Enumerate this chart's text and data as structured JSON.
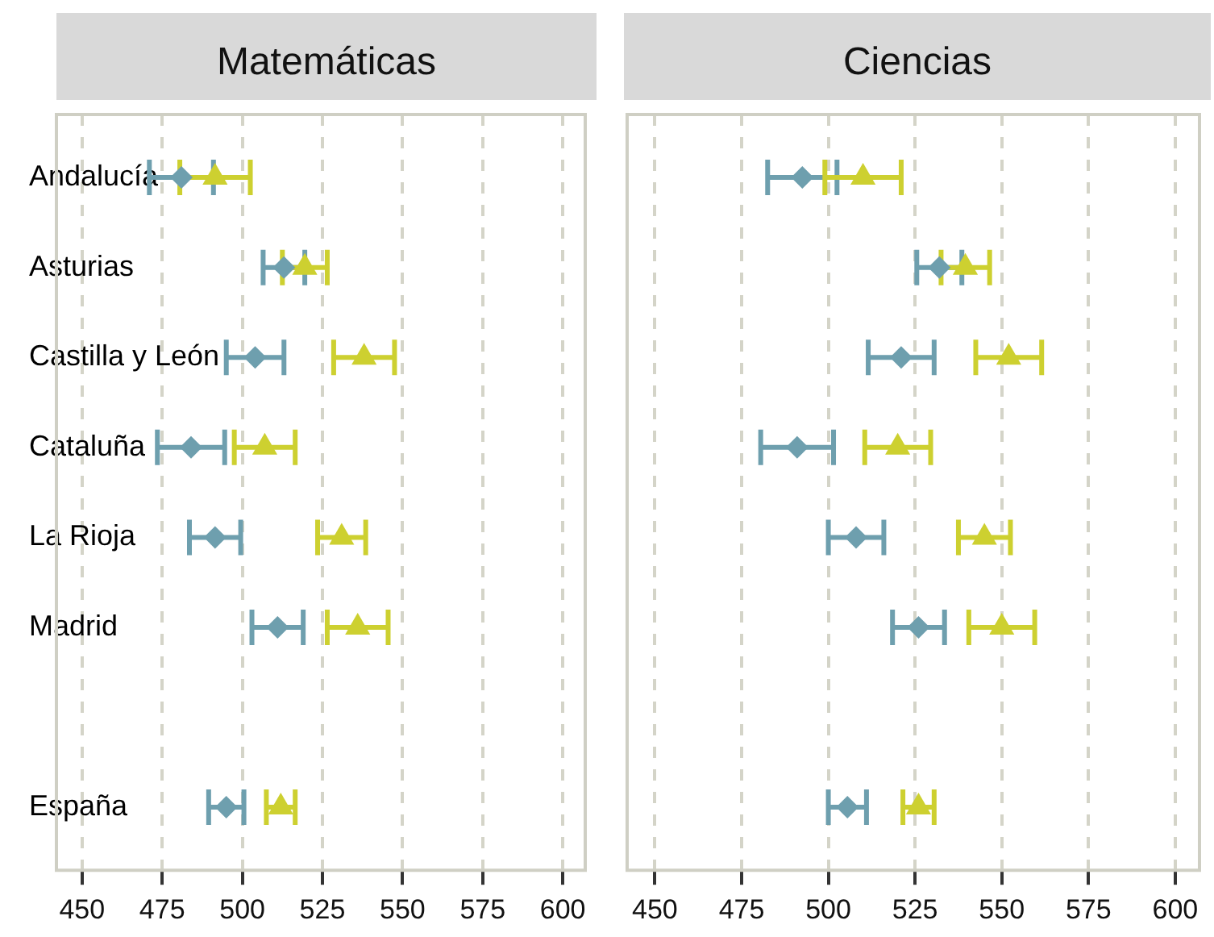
{
  "chart_data": [
    {
      "type": "scatter",
      "orientation": "horizontal",
      "title": "Matemáticas",
      "categories": [
        "Andalucía",
        "Asturias",
        "Castilla y León",
        "Cataluña",
        "La Rioja",
        "Madrid",
        null,
        "España"
      ],
      "xlim": [
        442,
        607
      ],
      "xticks": [
        450,
        475,
        500,
        525,
        550,
        575,
        600
      ],
      "grid": "x",
      "series": [
        {
          "color": "#6e9fae",
          "marker": "diamond",
          "values": [
            481,
            513,
            504,
            484,
            491.5,
            511,
            null,
            495
          ],
          "errors": [
            10,
            6.5,
            9,
            10.5,
            8,
            8,
            null,
            5.5
          ]
        },
        {
          "color": "#cdd030",
          "marker": "triangle",
          "values": [
            491.5,
            519.5,
            538,
            507,
            531,
            536,
            null,
            512
          ],
          "errors": [
            11,
            7,
            9.5,
            9.5,
            7.5,
            9.5,
            null,
            4.5
          ]
        }
      ]
    },
    {
      "type": "scatter",
      "orientation": "horizontal",
      "title": "Ciencias",
      "categories": [
        null,
        null,
        null,
        null,
        null,
        null,
        null,
        null
      ],
      "xlim": [
        442,
        607
      ],
      "xticks": [
        450,
        475,
        500,
        525,
        550,
        575,
        600
      ],
      "grid": "x",
      "tick_labels": "x",
      "series": [
        {
          "color": "#6e9fae",
          "marker": "diamond",
          "values": [
            492.5,
            532,
            521,
            491,
            508,
            526,
            null,
            505.5
          ],
          "errors": [
            10,
            6.5,
            9.5,
            10.5,
            8,
            7.5,
            null,
            5.5
          ]
        },
        {
          "color": "#cdd030",
          "marker": "triangle",
          "values": [
            510,
            539.5,
            552,
            520,
            545,
            550,
            null,
            526
          ],
          "errors": [
            11,
            7,
            9.5,
            9.5,
            7.5,
            9.5,
            null,
            4.5
          ]
        }
      ]
    }
  ]
}
